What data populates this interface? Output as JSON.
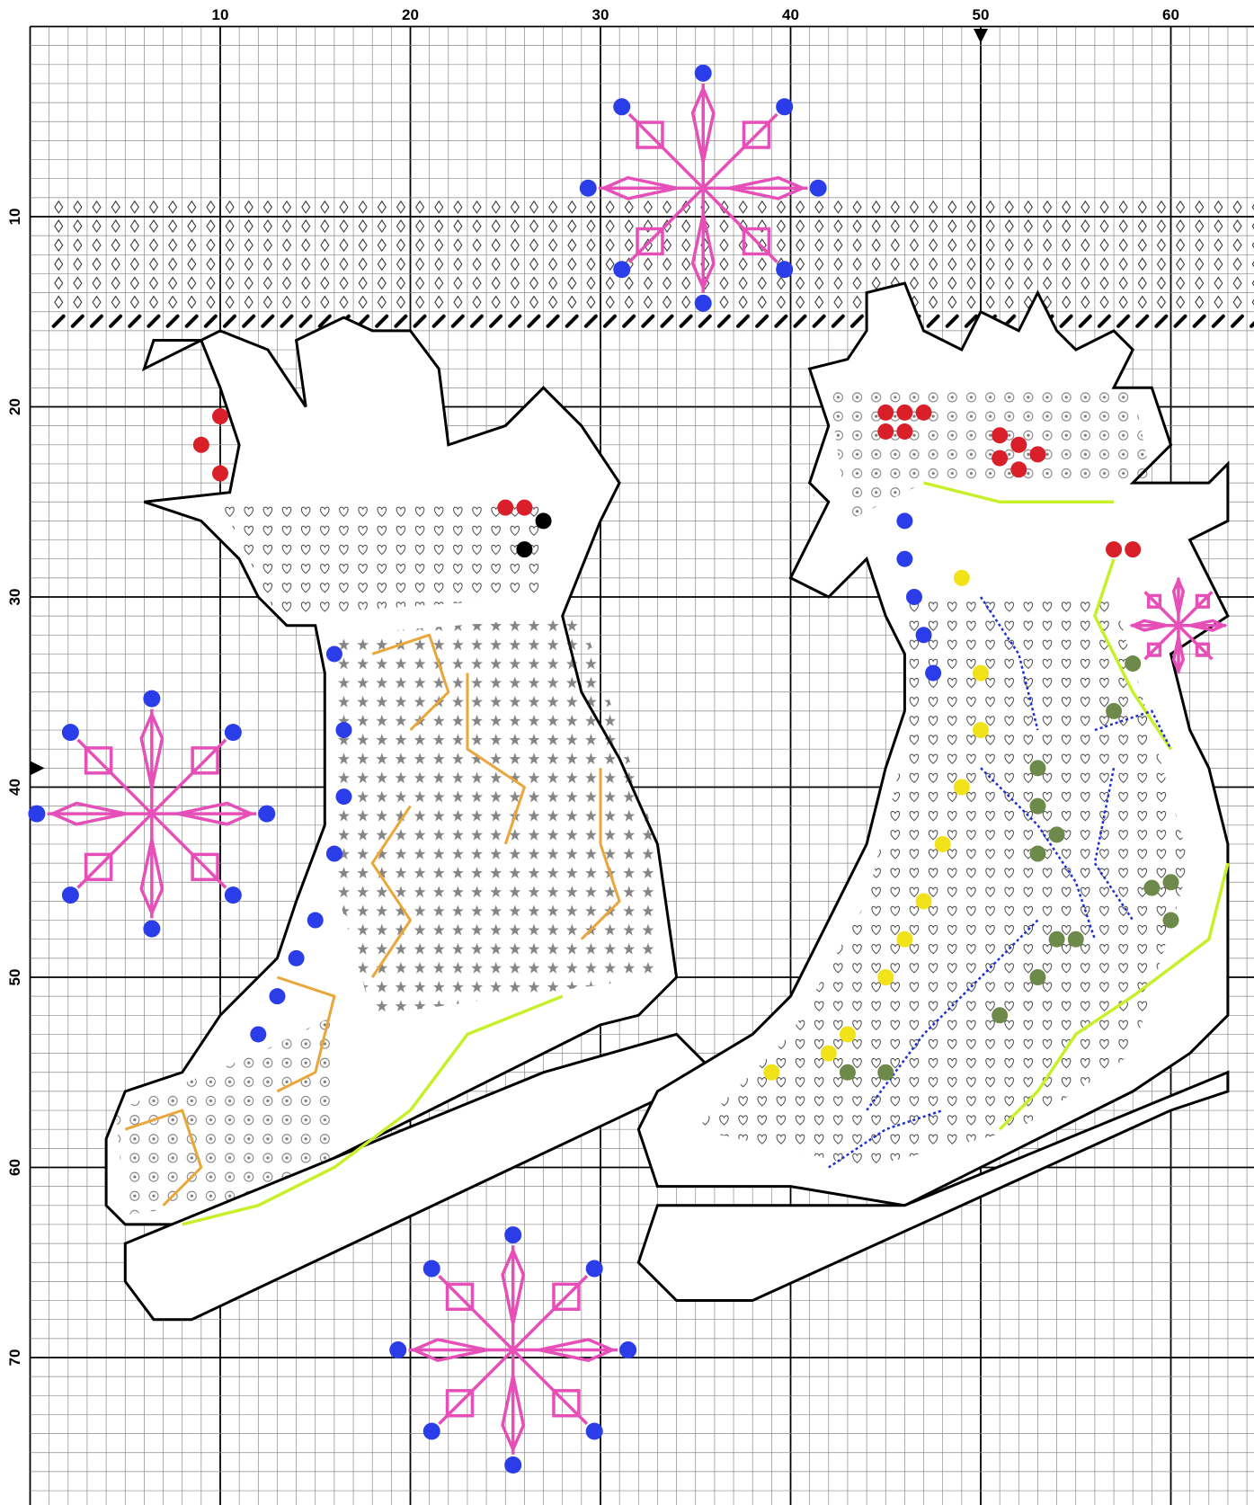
{
  "axes": {
    "columns": [
      "10",
      "20",
      "30",
      "40",
      "50",
      "60"
    ],
    "rows": [
      "10",
      "20",
      "30",
      "40",
      "50",
      "60",
      "70"
    ]
  }
}
